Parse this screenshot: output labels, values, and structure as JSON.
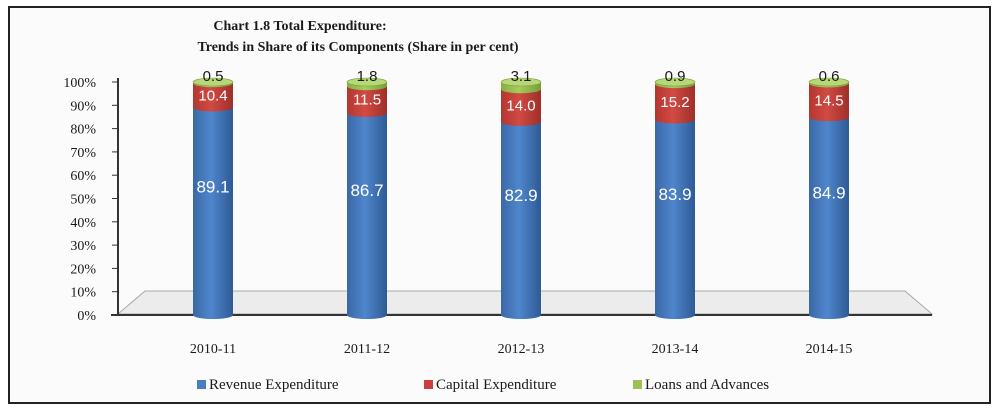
{
  "chart_data": {
    "type": "bar",
    "stacked": true,
    "title": "Chart 1.8 Total Expenditure:",
    "subtitle": "Trends in Share of its Components (Share in per cent)",
    "categories": [
      "2010-11",
      "2011-12",
      "2012-13",
      "2013-14",
      "2014-15"
    ],
    "series": [
      {
        "name": "Revenue Expenditure",
        "values": [
          89.1,
          86.7,
          82.9,
          83.9,
          84.9
        ],
        "labels": [
          "89.1",
          "86.7",
          "82.9",
          "83.9",
          "84.9"
        ]
      },
      {
        "name": "Capital Expenditure",
        "values": [
          10.4,
          11.5,
          14.0,
          15.2,
          14.5
        ],
        "labels": [
          "10.4",
          "11.5",
          "14.0",
          "15.2",
          "14.5"
        ]
      },
      {
        "name": "Loans and Advances",
        "values": [
          0.5,
          1.8,
          3.1,
          0.9,
          0.6
        ],
        "labels": [
          "0.5",
          "1.8",
          "3.1",
          "0.9",
          "0.6"
        ]
      }
    ],
    "yticks": [
      "0%",
      "10%",
      "20%",
      "30%",
      "40%",
      "50%",
      "60%",
      "70%",
      "80%",
      "90%",
      "100%"
    ],
    "ylim": [
      0,
      100
    ],
    "legend_position": "bottom",
    "colors": {
      "revenue": "#4a7ebf",
      "capital": "#c8413e",
      "loans": "#9bc252"
    }
  }
}
